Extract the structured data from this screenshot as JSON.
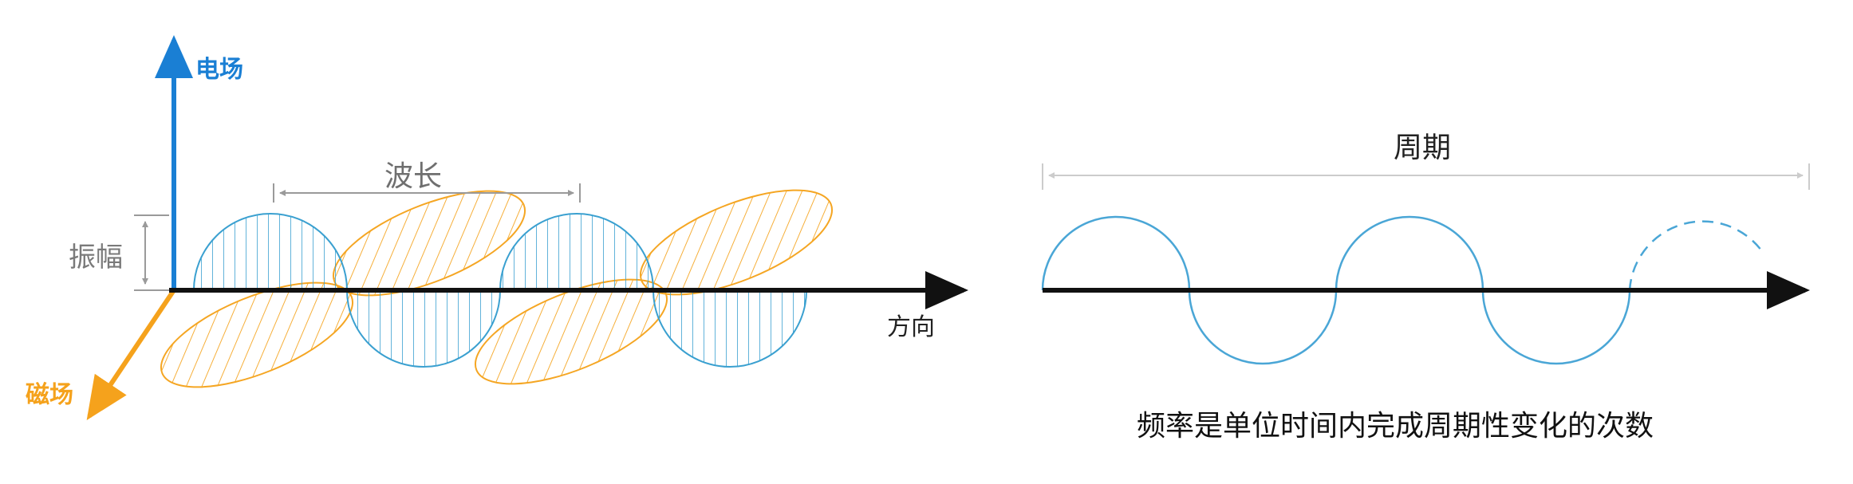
{
  "left_diagram": {
    "electric_field_label": "电场",
    "magnetic_field_label": "磁场",
    "amplitude_label": "振幅",
    "wavelength_label": "波长",
    "direction_label": "方向",
    "colors": {
      "electric": "#3aa0d0",
      "magnetic": "#f5a623",
      "electric_axis": "#1a7fd4",
      "magnetic_axis": "#f5a21c",
      "dimension": "#9a9a9a"
    }
  },
  "right_diagram": {
    "period_label": "周期",
    "frequency_caption": "频率是单位时间内完成周期性变化的次数",
    "colors": {
      "wave": "#4aa6d6",
      "dimension": "#cccccc"
    }
  }
}
